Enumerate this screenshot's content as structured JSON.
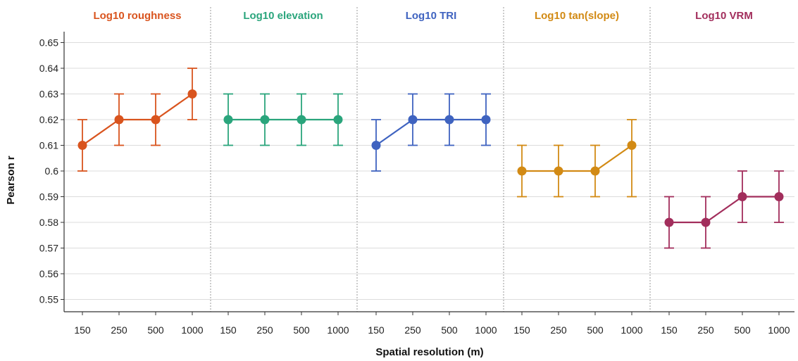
{
  "chart_data": {
    "type": "line",
    "xlabel": "Spatial resolution (m)",
    "ylabel": "Pearson r",
    "ylim": [
      0.545,
      0.655
    ],
    "yticks": [
      "0.55",
      "0.56",
      "0.57",
      "0.58",
      "0.59",
      "0.6",
      "0.61",
      "0.62",
      "0.63",
      "0.64",
      "0.65"
    ],
    "grid": "horizontal",
    "categories": [
      "150",
      "250",
      "500",
      "1000"
    ],
    "panels": [
      {
        "title": "Log10 roughness",
        "color": "#d9541e",
        "values": [
          0.61,
          0.62,
          0.62,
          0.63
        ],
        "err_low": [
          0.6,
          0.61,
          0.61,
          0.62
        ],
        "err_high": [
          0.62,
          0.63,
          0.63,
          0.64
        ]
      },
      {
        "title": "Log10 elevation",
        "color": "#2aa57c",
        "values": [
          0.62,
          0.62,
          0.62,
          0.62
        ],
        "err_low": [
          0.61,
          0.61,
          0.61,
          0.61
        ],
        "err_high": [
          0.63,
          0.63,
          0.63,
          0.63
        ]
      },
      {
        "title": "Log10 TRI",
        "color": "#3f63c0",
        "values": [
          0.61,
          0.62,
          0.62,
          0.62
        ],
        "err_low": [
          0.6,
          0.61,
          0.61,
          0.61
        ],
        "err_high": [
          0.62,
          0.63,
          0.63,
          0.63
        ]
      },
      {
        "title": "Log10 tan(slope)",
        "color": "#d28a14",
        "values": [
          0.6,
          0.6,
          0.6,
          0.61
        ],
        "err_low": [
          0.59,
          0.59,
          0.59,
          0.59
        ],
        "err_high": [
          0.61,
          0.61,
          0.61,
          0.62
        ]
      },
      {
        "title": "Log10 VRM",
        "color": "#a22e5c",
        "values": [
          0.58,
          0.58,
          0.59,
          0.59
        ],
        "err_low": [
          0.57,
          0.57,
          0.58,
          0.58
        ],
        "err_high": [
          0.59,
          0.59,
          0.6,
          0.6
        ]
      }
    ]
  }
}
